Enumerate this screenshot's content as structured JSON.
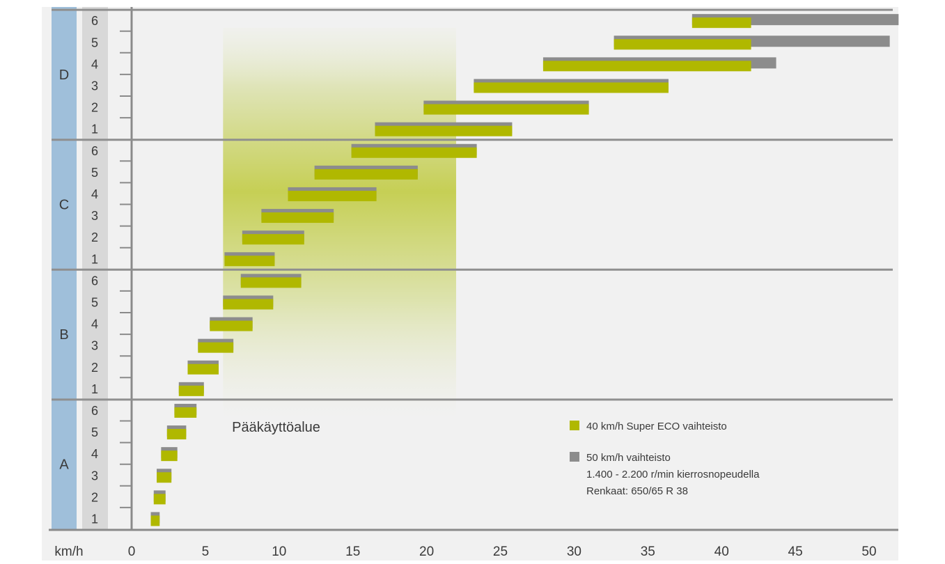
{
  "chart_data": {
    "type": "bar",
    "orientation": "horizontal",
    "x_unit_label": "km/h",
    "xlim": [
      0,
      52
    ],
    "x_ticks": [
      0,
      5,
      10,
      15,
      20,
      25,
      30,
      35,
      40,
      45,
      50
    ],
    "grid": false,
    "legend_placement": "bottom-right",
    "highlight_area": {
      "label": "Pääkäyttöalue",
      "x_range": [
        6.2,
        22
      ],
      "color": "#c3cd4a"
    },
    "series": [
      {
        "name": "40 km/h Super ECO vaihteisto",
        "color": "#b0b800"
      },
      {
        "name": "50 km/h vaihteisto",
        "color": "#8c8c8c"
      }
    ],
    "legend_notes": [
      "1.400 - 2.200 r/min kierrosnopeudella",
      "Renkaat: 650/65 R 38"
    ],
    "ranges": [
      {
        "range": "A",
        "gears": [
          {
            "gear": "1",
            "eco": [
              1.3,
              1.9
            ],
            "std": [
              1.3,
              1.9
            ]
          },
          {
            "gear": "2",
            "eco": [
              1.5,
              2.3
            ],
            "std": [
              1.5,
              2.3
            ]
          },
          {
            "gear": "3",
            "eco": [
              1.7,
              2.7
            ],
            "std": [
              1.7,
              2.7
            ]
          },
          {
            "gear": "4",
            "eco": [
              2.0,
              3.1
            ],
            "std": [
              2.0,
              3.1
            ]
          },
          {
            "gear": "5",
            "eco": [
              2.4,
              3.7
            ],
            "std": [
              2.4,
              3.7
            ]
          },
          {
            "gear": "6",
            "eco": [
              2.9,
              4.4
            ],
            "std": [
              2.9,
              4.4
            ]
          }
        ]
      },
      {
        "range": "B",
        "gears": [
          {
            "gear": "1",
            "eco": [
              3.2,
              4.9
            ],
            "std": [
              3.2,
              4.9
            ]
          },
          {
            "gear": "2",
            "eco": [
              3.8,
              5.9
            ],
            "std": [
              3.8,
              5.9
            ]
          },
          {
            "gear": "3",
            "eco": [
              4.5,
              6.9
            ],
            "std": [
              4.5,
              6.9
            ]
          },
          {
            "gear": "4",
            "eco": [
              5.3,
              8.2
            ],
            "std": [
              5.3,
              8.2
            ]
          },
          {
            "gear": "5",
            "eco": [
              6.2,
              9.6
            ],
            "std": [
              6.2,
              9.6
            ]
          },
          {
            "gear": "6",
            "eco": [
              7.4,
              11.5
            ],
            "std": [
              7.4,
              11.5
            ]
          }
        ]
      },
      {
        "range": "C",
        "gears": [
          {
            "gear": "1",
            "eco": [
              6.3,
              9.7
            ],
            "std": [
              6.3,
              9.7
            ]
          },
          {
            "gear": "2",
            "eco": [
              7.5,
              11.7
            ],
            "std": [
              7.5,
              11.7
            ]
          },
          {
            "gear": "3",
            "eco": [
              8.8,
              13.7
            ],
            "std": [
              8.8,
              13.7
            ]
          },
          {
            "gear": "4",
            "eco": [
              10.6,
              16.6
            ],
            "std": [
              10.6,
              16.6
            ]
          },
          {
            "gear": "5",
            "eco": [
              12.4,
              19.4
            ],
            "std": [
              12.4,
              19.4
            ]
          },
          {
            "gear": "6",
            "eco": [
              14.9,
              23.4
            ],
            "std": [
              14.9,
              23.4
            ]
          }
        ]
      },
      {
        "range": "D",
        "gears": [
          {
            "gear": "1",
            "eco": [
              16.5,
              25.8
            ],
            "std": [
              16.5,
              25.8
            ]
          },
          {
            "gear": "2",
            "eco": [
              19.8,
              31.0
            ],
            "std": [
              19.8,
              31.0
            ]
          },
          {
            "gear": "3",
            "eco": [
              23.2,
              36.4
            ],
            "std": [
              23.2,
              36.4
            ]
          },
          {
            "gear": "4",
            "eco": [
              27.9,
              42.0
            ],
            "std": [
              27.9,
              43.7
            ]
          },
          {
            "gear": "5",
            "eco": [
              32.7,
              42.0
            ],
            "std": [
              32.7,
              51.4
            ]
          },
          {
            "gear": "6",
            "eco": [
              38.0,
              42.0
            ],
            "std": [
              38.0,
              52.0
            ]
          }
        ]
      }
    ]
  }
}
